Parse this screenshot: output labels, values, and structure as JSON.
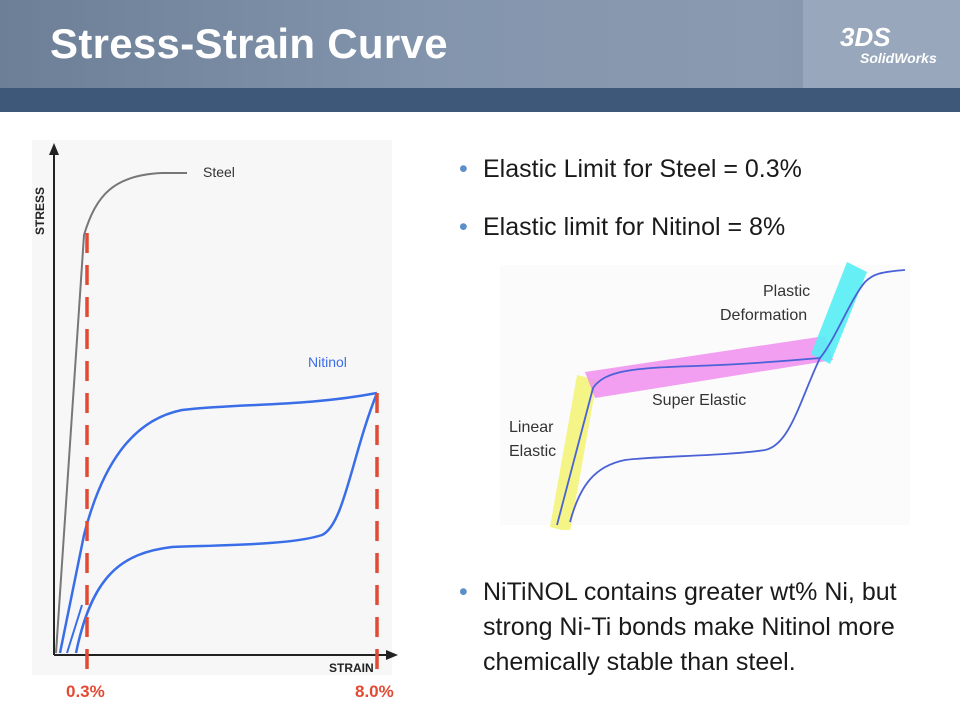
{
  "slide": {
    "title": "Stress-Strain Curve"
  },
  "logo": {
    "mark": "3DS",
    "text": "SolidWorks"
  },
  "left_chart": {
    "axis_y_label": "STRESS",
    "axis_x_label": "STRAIN",
    "steel_label": "Steel",
    "nitinol_label": "Nitinol",
    "marker_left": "0.3%",
    "marker_right": "8.0%"
  },
  "bullets": {
    "b1": "Elastic Limit for Steel = 0.3%",
    "b2": "Elastic limit for Nitinol = 8%",
    "b3": "NiTiNOL contains greater wt% Ni, but strong Ni-Ti bonds make Nitinol more chemically stable than steel."
  },
  "right_diagram": {
    "plastic_line1": "Plastic",
    "plastic_line2": "Deformation",
    "super_elastic": "Super Elastic",
    "linear_line1": "Linear",
    "linear_line2": "Elastic"
  },
  "colors": {
    "header": "#7d8fa7",
    "stripe": "#3d5878",
    "steel_curve": "#777777",
    "nitinol_curve": "#3a6ee8",
    "marker": "#e24a34",
    "linear_band": "#f3f37a",
    "super_band": "#f08ef0",
    "plastic_band": "#55eef5"
  }
}
